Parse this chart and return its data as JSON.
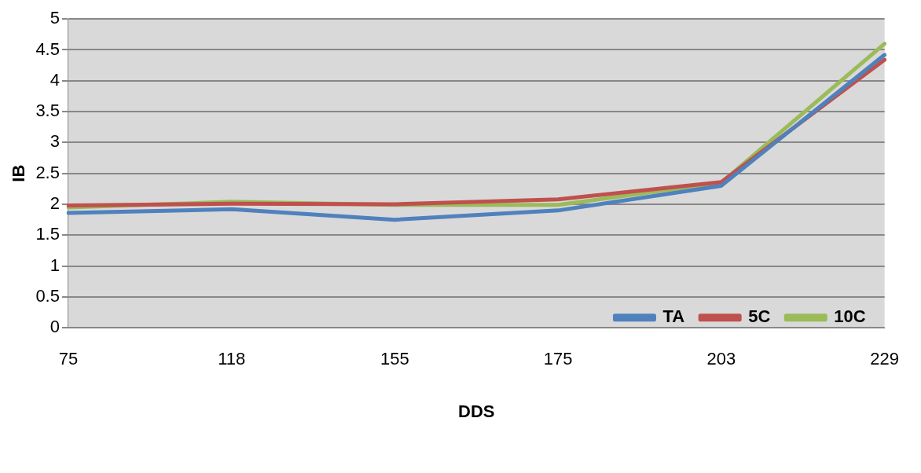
{
  "chart_data": {
    "type": "line",
    "xlabel": "DDS",
    "ylabel": "IB",
    "categories": [
      "75",
      "118",
      "155",
      "175",
      "203",
      "229"
    ],
    "series": [
      {
        "name": "TA",
        "color": "#4f81bd",
        "values": [
          1.86,
          1.92,
          1.75,
          1.9,
          2.3,
          4.42
        ]
      },
      {
        "name": "5C",
        "color": "#c0504d",
        "values": [
          1.98,
          2.01,
          2.0,
          2.08,
          2.36,
          4.34
        ]
      },
      {
        "name": "10C",
        "color": "#9bbb59",
        "values": [
          1.95,
          2.04,
          1.99,
          1.99,
          2.35,
          4.6
        ]
      }
    ],
    "ylim": [
      0,
      5
    ],
    "yticks": [
      0,
      0.5,
      1,
      1.5,
      2,
      2.5,
      3,
      3.5,
      4,
      4.5,
      5
    ],
    "grid": "y",
    "legend": "bottom right",
    "marker": "none",
    "line_style": "solid"
  }
}
